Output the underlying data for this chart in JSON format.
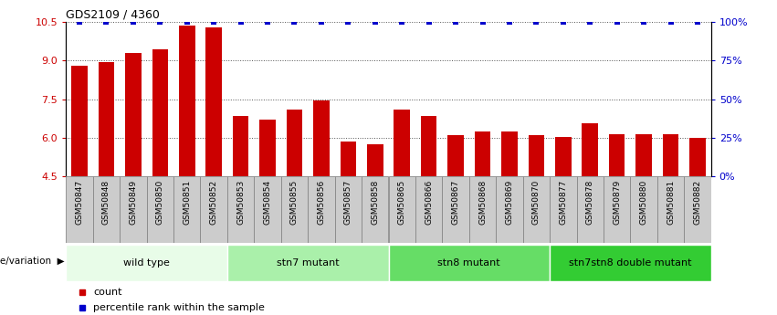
{
  "title": "GDS2109 / 4360",
  "samples": [
    "GSM50847",
    "GSM50848",
    "GSM50849",
    "GSM50850",
    "GSM50851",
    "GSM50852",
    "GSM50853",
    "GSM50854",
    "GSM50855",
    "GSM50856",
    "GSM50857",
    "GSM50858",
    "GSM50865",
    "GSM50866",
    "GSM50867",
    "GSM50868",
    "GSM50869",
    "GSM50870",
    "GSM50877",
    "GSM50878",
    "GSM50879",
    "GSM50880",
    "GSM50881",
    "GSM50882"
  ],
  "counts": [
    8.8,
    8.95,
    9.3,
    9.45,
    10.35,
    10.3,
    6.85,
    6.7,
    7.1,
    7.45,
    5.85,
    5.75,
    7.1,
    6.85,
    6.1,
    6.25,
    6.25,
    6.1,
    6.05,
    6.55,
    6.15,
    6.15,
    6.15,
    6.0
  ],
  "percentiles": [
    100,
    100,
    100,
    100,
    100,
    100,
    100,
    100,
    100,
    100,
    100,
    100,
    100,
    100,
    100,
    100,
    100,
    100,
    100,
    100,
    100,
    100,
    100,
    100
  ],
  "bar_color": "#cc0000",
  "percentile_color": "#0000cc",
  "ylim_left": [
    4.5,
    10.5
  ],
  "ylim_right": [
    0,
    100
  ],
  "yticks_left": [
    4.5,
    6.0,
    7.5,
    9.0,
    10.5
  ],
  "yticks_right": [
    0,
    25,
    50,
    75,
    100
  ],
  "ytick_labels_right": [
    "0%",
    "25%",
    "50%",
    "75%",
    "100%"
  ],
  "groups": [
    {
      "label": "wild type",
      "start": 0,
      "end": 6,
      "color": "#e8fce8"
    },
    {
      "label": "stn7 mutant",
      "start": 6,
      "end": 12,
      "color": "#aaf0aa"
    },
    {
      "label": "stn8 mutant",
      "start": 12,
      "end": 18,
      "color": "#66dd66"
    },
    {
      "label": "stn7stn8 double mutant",
      "start": 18,
      "end": 24,
      "color": "#33cc33"
    }
  ],
  "group_row_color": "#cccccc",
  "xlabel_row": "genotype/variation",
  "legend_count_label": "count",
  "legend_percentile_label": "percentile rank within the sample",
  "background_color": "#ffffff",
  "plot_bg_color": "#ffffff",
  "grid_color": "#555555",
  "tick_label_color_left": "#cc0000",
  "tick_label_color_right": "#0000cc",
  "tick_cell_color": "#cccccc"
}
